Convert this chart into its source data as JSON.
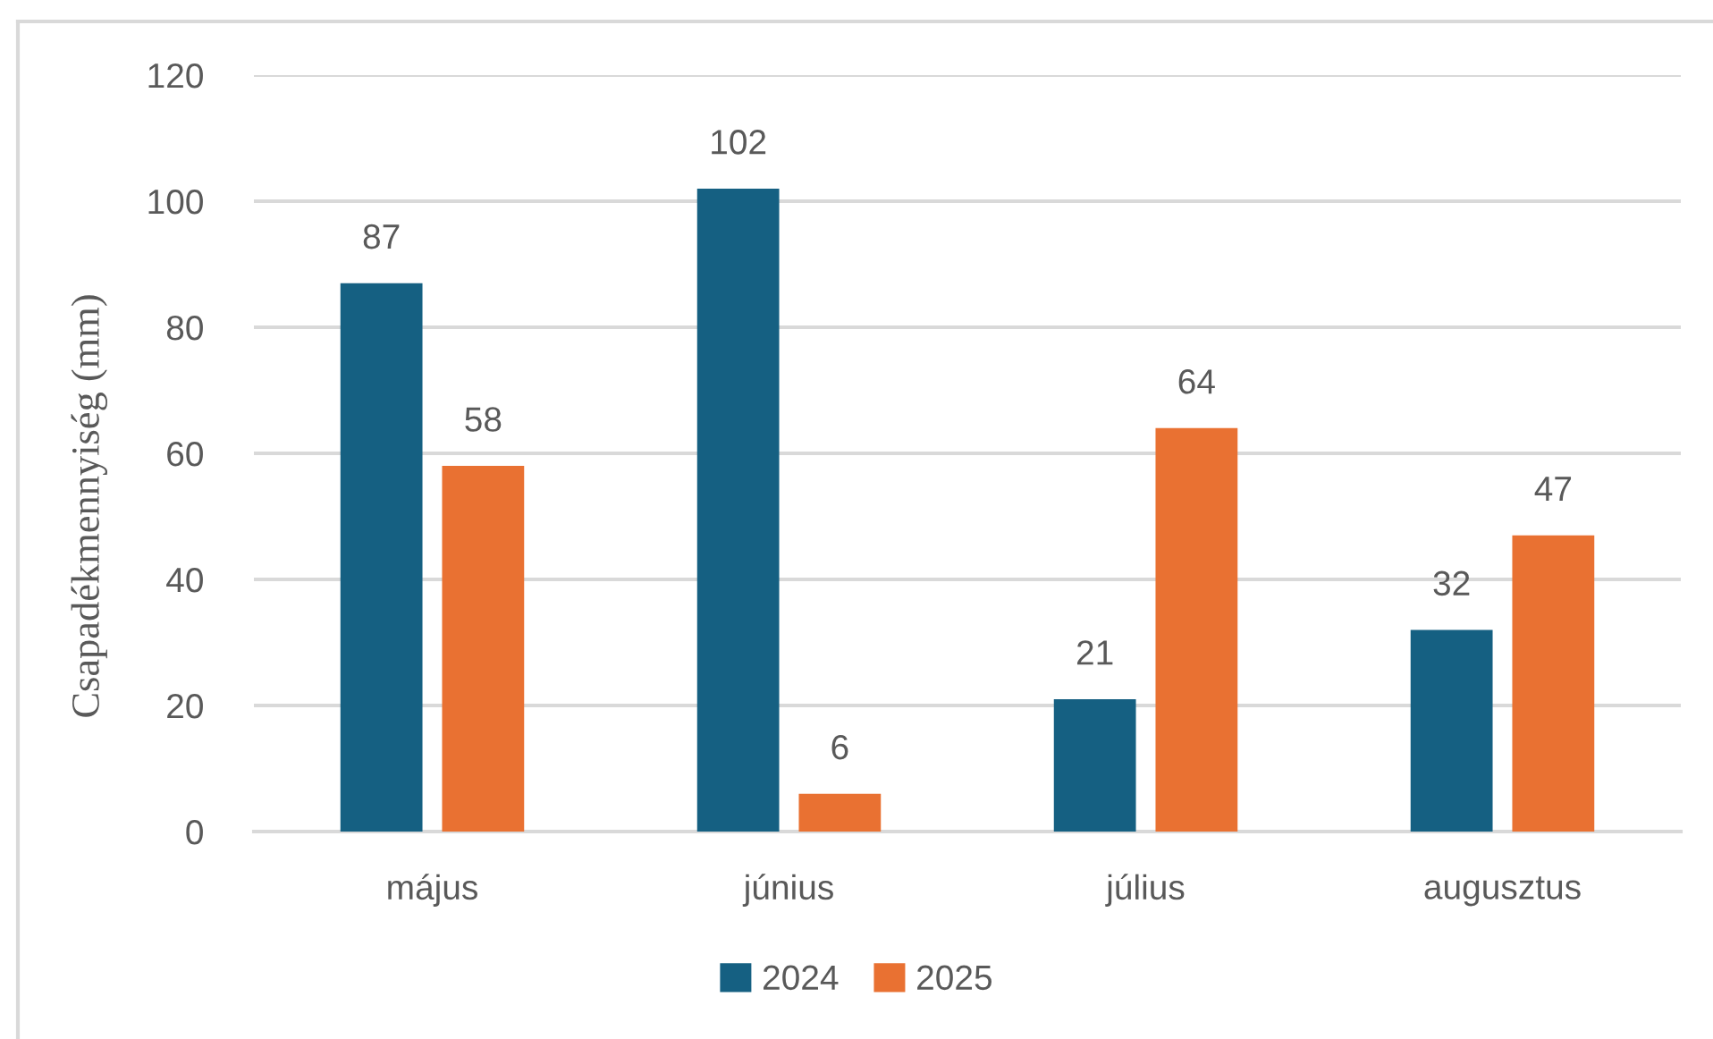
{
  "chart_data": {
    "type": "bar",
    "ylabel": "Csapadékmennyiség (mm)",
    "categories": [
      "május",
      "június",
      "július",
      "augusztus"
    ],
    "series": [
      {
        "name": "2024",
        "color": "#156082",
        "values": [
          87,
          102,
          21,
          32
        ]
      },
      {
        "name": "2025",
        "color": "#e97132",
        "values": [
          58,
          6,
          64,
          47
        ]
      }
    ],
    "ylim": [
      0,
      120
    ],
    "yticks": [
      0,
      20,
      40,
      60,
      80,
      100,
      120
    ],
    "grid": "y",
    "legend": "bottom",
    "data_labels": true
  }
}
